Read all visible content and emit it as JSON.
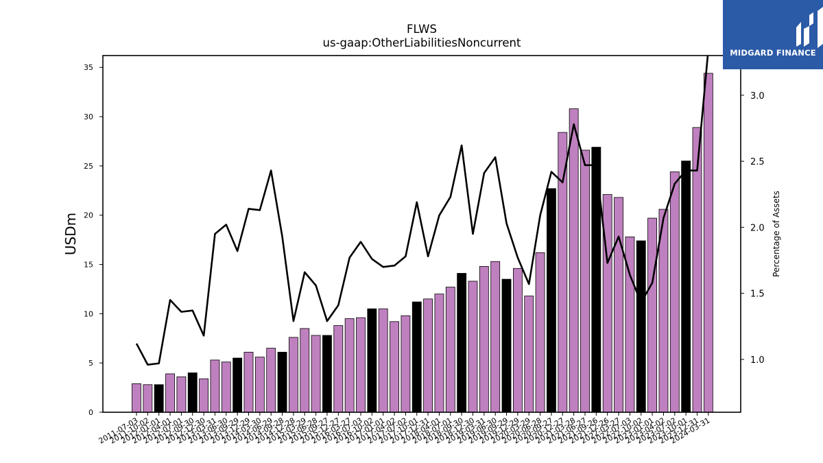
{
  "chart_data": {
    "type": "bar",
    "title": "FLWS",
    "subtitle": "us-gaap:OtherLiabilitiesNoncurrent",
    "ylabel": "USDm",
    "y2label": "Percentage of Assets",
    "ylim": [
      0,
      36.2
    ],
    "y2lim": [
      0.6,
      3.3
    ],
    "yticks": [
      0,
      5,
      10,
      15,
      20,
      25,
      30,
      35
    ],
    "y2ticks": [
      1.0,
      1.5,
      2.0,
      2.5,
      3.0
    ],
    "grid": false,
    "categories": [
      "2011-07-03",
      "2011-10-02",
      "2012-01-01",
      "2012-04-01",
      "2012-07-01",
      "2012-09-30",
      "2012-12-30",
      "2013-03-31",
      "2013-06-30",
      "2013-09-29",
      "2013-12-29",
      "2014-03-30",
      "2014-06-29",
      "2014-09-28",
      "2014-12-28",
      "2015-03-29",
      "2015-06-28",
      "2015-09-27",
      "2015-12-27",
      "2016-03-27",
      "2016-07-03",
      "2016-10-02",
      "2017-01-01",
      "2017-04-02",
      "2017-07-02",
      "2017-10-01",
      "2017-12-31",
      "2018-04-01",
      "2018-07-01",
      "2018-09-30",
      "2018-12-30",
      "2019-03-31",
      "2019-06-30",
      "2019-09-29",
      "2019-12-29",
      "2020-03-29",
      "2020-06-28",
      "2020-09-27",
      "2020-12-27",
      "2021-03-28",
      "2021-06-27",
      "2021-09-26",
      "2021-12-26",
      "2022-03-27",
      "2022-07-03",
      "2022-10-02",
      "2023-01-01",
      "2023-04-02",
      "2023-07-02",
      "2023-10-01",
      "2023-12-31",
      "2024-03-31"
    ],
    "series": [
      {
        "type": "bar",
        "values": [
          2.9,
          2.8,
          2.8,
          3.9,
          3.6,
          4.0,
          3.4,
          5.3,
          5.1,
          5.5,
          6.1,
          5.6,
          6.5,
          6.1,
          7.6,
          8.5,
          7.8,
          7.8,
          8.8,
          9.5,
          9.6,
          10.5,
          10.5,
          9.2,
          9.8,
          11.2,
          11.5,
          12.0,
          12.7,
          14.1,
          13.3,
          14.8,
          15.3,
          13.5,
          14.6,
          11.8,
          16.2,
          22.7,
          28.4,
          30.8,
          26.6,
          26.9,
          22.1,
          21.8,
          17.8,
          17.4,
          19.7,
          20.6,
          24.4,
          25.5,
          28.9,
          34.4
        ],
        "fiscal_year_end": [
          false,
          false,
          true,
          false,
          false,
          true,
          false,
          false,
          false,
          true,
          false,
          false,
          false,
          true,
          false,
          false,
          false,
          true,
          false,
          false,
          false,
          true,
          false,
          false,
          false,
          true,
          false,
          false,
          false,
          true,
          false,
          false,
          false,
          true,
          false,
          false,
          false,
          true,
          false,
          false,
          false,
          true,
          false,
          false,
          false,
          true,
          false,
          false,
          false,
          true,
          false,
          false
        ]
      },
      {
        "type": "line",
        "axis": "right",
        "values": [
          1.12,
          0.96,
          0.97,
          1.45,
          1.36,
          1.37,
          1.18,
          1.95,
          2.02,
          1.82,
          2.14,
          2.13,
          2.43,
          1.93,
          1.29,
          1.66,
          1.56,
          1.29,
          1.41,
          1.77,
          1.89,
          1.76,
          1.7,
          1.71,
          1.78,
          2.19,
          1.78,
          2.09,
          2.23,
          2.62,
          1.95,
          2.41,
          2.53,
          2.03,
          1.77,
          1.57,
          2.09,
          2.42,
          2.34,
          2.78,
          2.47,
          2.47,
          1.73,
          1.93,
          1.64,
          1.43,
          1.58,
          2.07,
          2.33,
          2.43,
          2.43,
          3.35
        ]
      }
    ],
    "colors": {
      "bar": "#bf80bf",
      "bar_fiscal_year_end": "#000000",
      "line": "#000000",
      "axis": "#000000"
    }
  },
  "logo": {
    "text": "MIDGARD FINANCE",
    "background": "#2b5aa7",
    "foreground": "#ffffff"
  }
}
